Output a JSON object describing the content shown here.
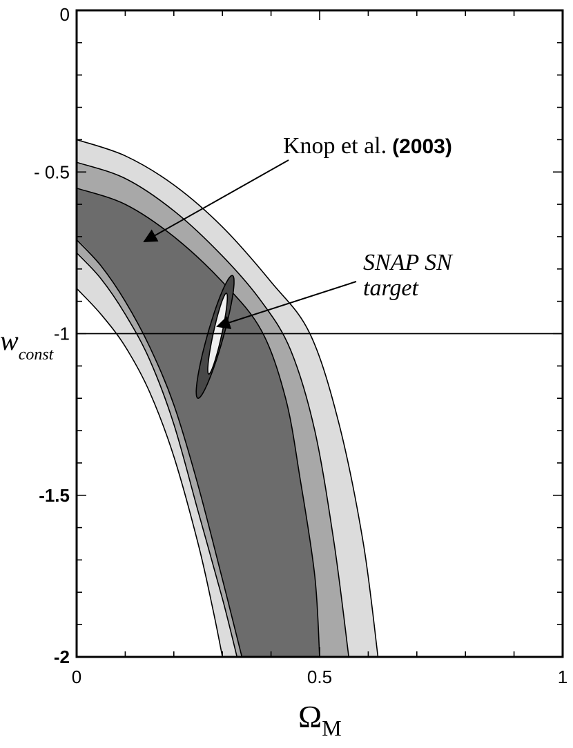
{
  "chart_data": {
    "type": "contour",
    "xlabel": "Ω",
    "xlabel_sub": "M",
    "ylabel": "w",
    "ylabel_sub": "const",
    "xlim": [
      0,
      1
    ],
    "ylim": [
      -2,
      0
    ],
    "x_ticks": [
      {
        "value": 0,
        "label": "0"
      },
      {
        "value": 0.5,
        "label": "0.5"
      },
      {
        "value": 1,
        "label": "1"
      }
    ],
    "y_ticks": [
      {
        "value": 0,
        "label": "0",
        "bold": false
      },
      {
        "value": -0.5,
        "label": "- 0.5",
        "bold": false
      },
      {
        "value": -1,
        "label": "-1",
        "bold": false
      },
      {
        "value": -1.5,
        "label": "-1.5",
        "bold": true
      },
      {
        "value": -2,
        "label": "-2",
        "bold": true
      }
    ],
    "reference_line": {
      "y": -1
    },
    "knop_bands": [
      {
        "level": "outer",
        "color": "#dcdcdc",
        "inner": [
          [
            0.0,
            -0.86
          ],
          [
            0.05,
            -0.94
          ],
          [
            0.1,
            -1.04
          ],
          [
            0.15,
            -1.18
          ],
          [
            0.2,
            -1.38
          ],
          [
            0.25,
            -1.65
          ],
          [
            0.28,
            -1.85
          ],
          [
            0.3,
            -2.0
          ]
        ],
        "outer": [
          [
            0.0,
            -0.4
          ],
          [
            0.1,
            -0.45
          ],
          [
            0.2,
            -0.54
          ],
          [
            0.3,
            -0.67
          ],
          [
            0.4,
            -0.84
          ],
          [
            0.48,
            -1.0
          ],
          [
            0.54,
            -1.28
          ],
          [
            0.59,
            -1.65
          ],
          [
            0.62,
            -2.0
          ]
        ]
      },
      {
        "level": "middle",
        "color": "#a8a8a8",
        "inner": [
          [
            0.0,
            -0.75
          ],
          [
            0.05,
            -0.83
          ],
          [
            0.1,
            -0.94
          ],
          [
            0.15,
            -1.08
          ],
          [
            0.2,
            -1.28
          ],
          [
            0.25,
            -1.55
          ],
          [
            0.3,
            -1.82
          ],
          [
            0.33,
            -2.0
          ]
        ],
        "outer": [
          [
            0.0,
            -0.47
          ],
          [
            0.1,
            -0.52
          ],
          [
            0.2,
            -0.62
          ],
          [
            0.3,
            -0.76
          ],
          [
            0.38,
            -0.9
          ],
          [
            0.44,
            -1.05
          ],
          [
            0.49,
            -1.3
          ],
          [
            0.53,
            -1.65
          ],
          [
            0.56,
            -2.0
          ]
        ]
      },
      {
        "level": "inner",
        "color": "#6c6c6c",
        "inner": [
          [
            0.0,
            -0.71
          ],
          [
            0.05,
            -0.79
          ],
          [
            0.1,
            -0.9
          ],
          [
            0.15,
            -1.04
          ],
          [
            0.2,
            -1.22
          ],
          [
            0.25,
            -1.47
          ],
          [
            0.3,
            -1.76
          ],
          [
            0.34,
            -2.0
          ]
        ],
        "outer": [
          [
            0.0,
            -0.55
          ],
          [
            0.1,
            -0.6
          ],
          [
            0.2,
            -0.7
          ],
          [
            0.3,
            -0.84
          ],
          [
            0.38,
            -0.99
          ],
          [
            0.43,
            -1.2
          ],
          [
            0.46,
            -1.45
          ],
          [
            0.49,
            -1.75
          ],
          [
            0.5,
            -2.0
          ]
        ]
      }
    ],
    "snap_ellipses": [
      {
        "level": "outer",
        "color": "#484848",
        "center": [
          0.285,
          -1.01
        ],
        "semi_major": [
          0.035,
          0.19
        ],
        "semi_minor": [
          0.017,
          0.0
        ]
      },
      {
        "level": "inner",
        "color": "#f0f0f0",
        "center": [
          0.29,
          -1.0
        ],
        "semi_major": [
          0.018,
          0.125
        ],
        "semi_minor": [
          0.009,
          0.0
        ]
      }
    ],
    "annotations": [
      {
        "name": "knop",
        "text_main": "Knop et al.",
        "text_year": "(2003)",
        "arrow_to": [
          0.255,
          -0.73
        ]
      },
      {
        "name": "snap",
        "text_line1": "SNAP SN",
        "text_line2": "target",
        "arrow_to": [
          0.29,
          -0.98
        ]
      }
    ]
  }
}
